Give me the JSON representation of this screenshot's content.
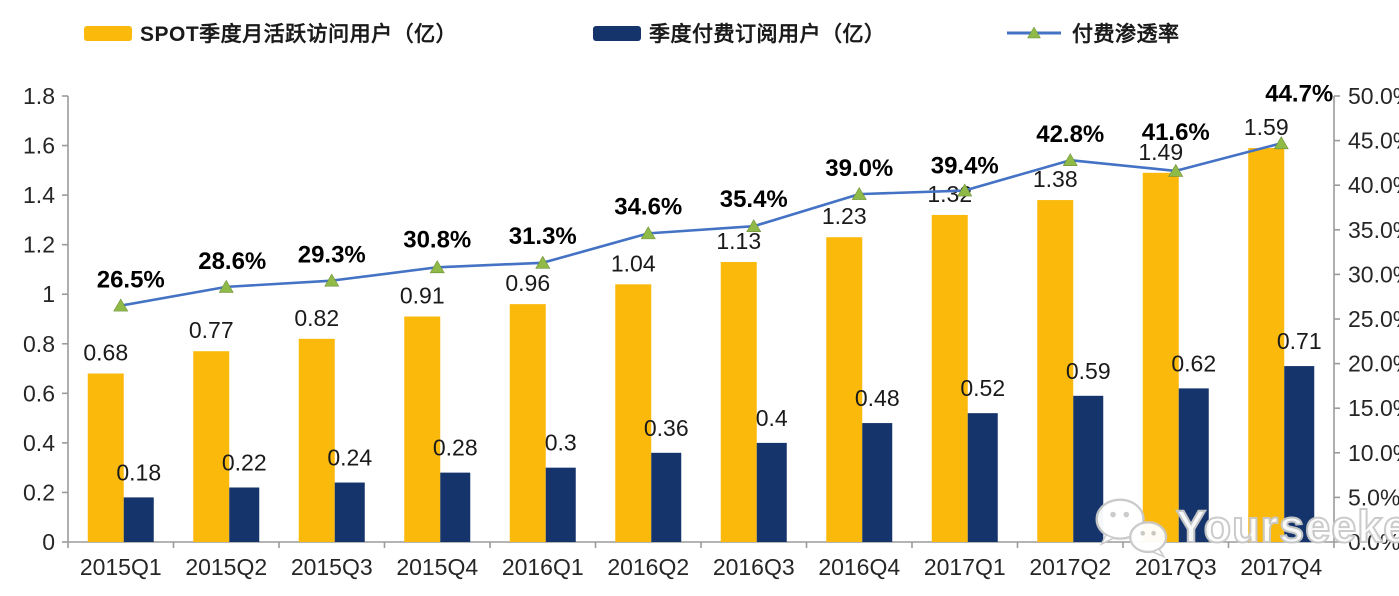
{
  "legend": {
    "items": [
      {
        "label": "SPOT季度月活跃访问用户（亿）",
        "type": "bar",
        "color": "#FBB90C"
      },
      {
        "label": "季度付费订阅用户（亿）",
        "type": "bar",
        "color": "#16346C"
      },
      {
        "label": "付费渗透率",
        "type": "line",
        "color": "#4472C4",
        "marker_color": "#8FBA47"
      }
    ]
  },
  "chart_data": {
    "type": "bar+line",
    "categories": [
      "2015Q1",
      "2015Q2",
      "2015Q3",
      "2015Q4",
      "2016Q1",
      "2016Q2",
      "2016Q3",
      "2016Q4",
      "2017Q1",
      "2017Q2",
      "2017Q3",
      "2017Q4"
    ],
    "series": [
      {
        "name": "SPOT季度月活跃访问用户（亿）",
        "type": "bar",
        "axis": "left",
        "color": "#FBB90C",
        "values": [
          0.68,
          0.77,
          0.82,
          0.91,
          0.96,
          1.04,
          1.13,
          1.23,
          1.32,
          1.38,
          1.49,
          1.59
        ],
        "labels": [
          "0.68",
          "0.77",
          "0.82",
          "0.91",
          "0.96",
          "1.04",
          "1.13",
          "1.23",
          "1.32",
          "1.38",
          "1.49",
          "1.59"
        ]
      },
      {
        "name": "季度付费订阅用户（亿）",
        "type": "bar",
        "axis": "left",
        "color": "#16346C",
        "values": [
          0.18,
          0.22,
          0.24,
          0.28,
          0.3,
          0.36,
          0.4,
          0.48,
          0.52,
          0.59,
          0.62,
          0.71
        ],
        "labels": [
          "0.18",
          "0.22",
          "0.24",
          "0.28",
          "0.3",
          "0.36",
          "0.4",
          "0.48",
          "0.52",
          "0.59",
          "0.62",
          "0.71"
        ]
      },
      {
        "name": "付费渗透率",
        "type": "line",
        "axis": "right",
        "color": "#4472C4",
        "marker": "triangle",
        "marker_color": "#8FBA47",
        "values": [
          26.5,
          28.6,
          29.3,
          30.8,
          31.3,
          34.6,
          35.4,
          39.0,
          39.4,
          42.8,
          41.6,
          44.7
        ],
        "labels": [
          "26.5%",
          "28.6%",
          "29.3%",
          "30.8%",
          "31.3%",
          "34.6%",
          "35.4%",
          "39.0%",
          "39.4%",
          "42.8%",
          "41.6%",
          "44.7%"
        ]
      }
    ],
    "left_axis": {
      "min": 0,
      "max": 1.8,
      "step": 0.2,
      "tick_labels": [
        "0",
        "0.2",
        "0.4",
        "0.6",
        "0.8",
        "1",
        "1.2",
        "1.4",
        "1.6",
        "1.8"
      ]
    },
    "right_axis": {
      "min": 0,
      "max": 50,
      "step": 5,
      "tick_labels": [
        "0.0%",
        "5.0%",
        "10.0%",
        "15.0%",
        "20.0%",
        "25.0%",
        "30.0%",
        "35.0%",
        "40.0%",
        "45.0%",
        "50.0%"
      ]
    },
    "grid": false,
    "legend_position": "top",
    "axis_color": "#9B9B9B",
    "layout_hints": {
      "pct_label_dy": [
        -18,
        -18,
        -18,
        -20,
        -19,
        -19,
        -19,
        -18,
        -17,
        -18,
        -31,
        -42
      ],
      "pct_label_dx": [
        10,
        6,
        0,
        0,
        0,
        0,
        0,
        0,
        0,
        0,
        0,
        18
      ]
    }
  },
  "watermark": {
    "text": "Yourseeker",
    "icon": "wechat-icon"
  }
}
